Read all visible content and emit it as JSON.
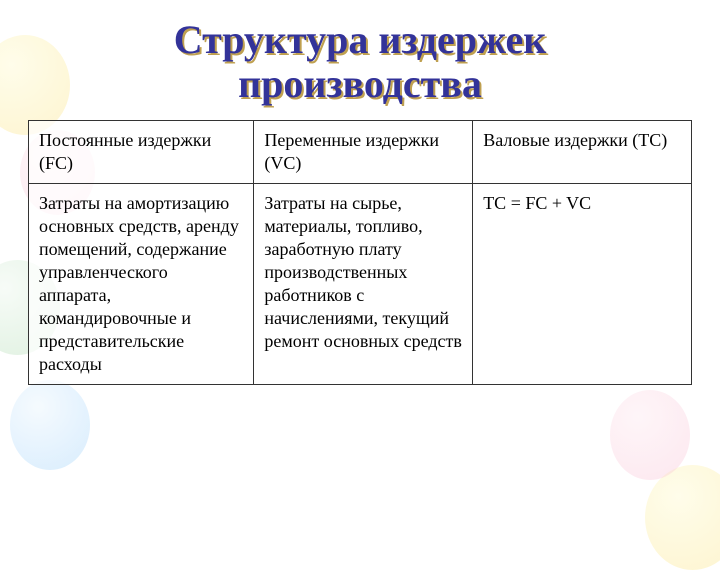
{
  "title_line1": "Структура издержек",
  "title_line2": "производства",
  "table": {
    "columns": [
      "col1",
      "col2",
      "col3"
    ],
    "rows": [
      [
        "Постоянные издержки (FC)",
        "Переменные издержки (VC)",
        "Валовые издержки (TC)"
      ],
      [
        "Затраты на амортизацию основных средств, аренду помещений, содержание управленческого аппарата, командировочные и представительские расходы",
        "Затраты на сырье, материалы, топливо, заработную плату производственных работников с начислениями, текущий ремонт основных средств",
        "TC = FC + VC"
      ]
    ]
  },
  "colors": {
    "title_text": "#333399",
    "title_shadow": "#bfa050",
    "border": "#333333",
    "body_text": "#000000",
    "background": "#ffffff"
  },
  "font_sizes": {
    "title": 40,
    "cell": 18
  }
}
